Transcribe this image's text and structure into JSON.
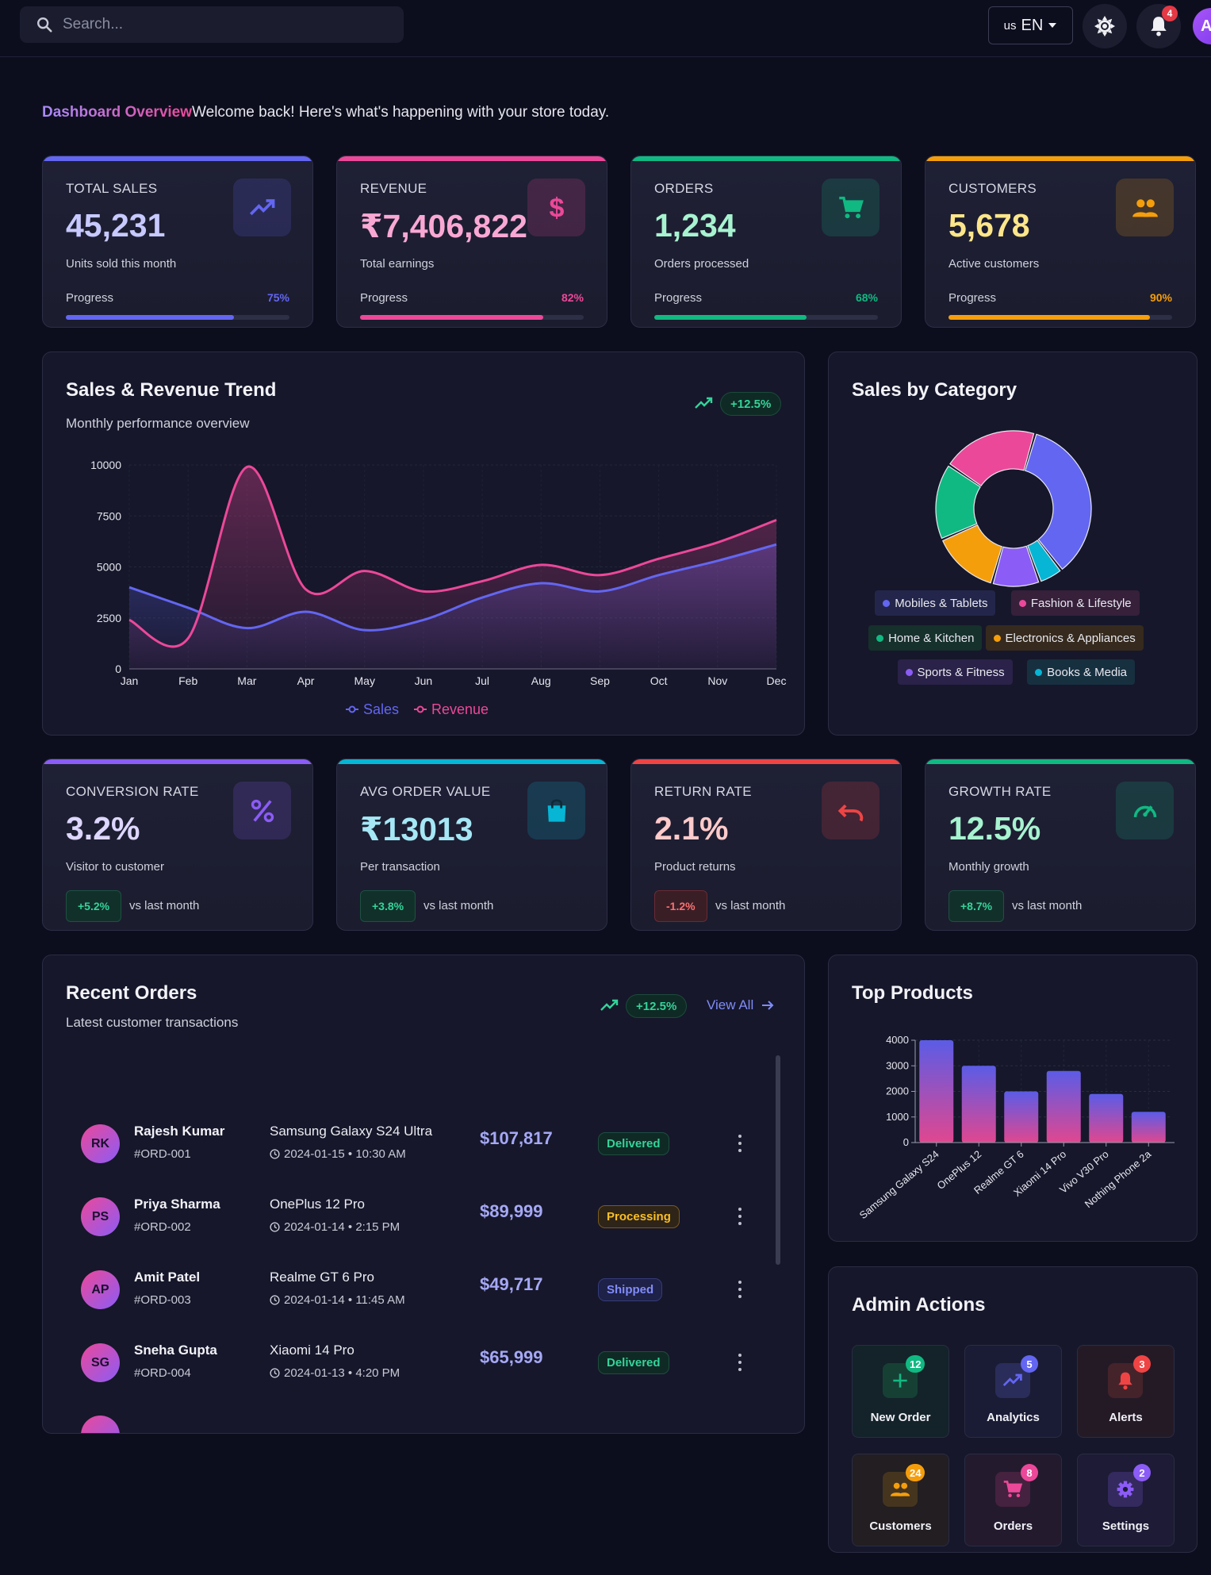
{
  "topbar": {
    "search_placeholder": "Search...",
    "lang_flag": "us",
    "lang_code": "EN",
    "notif_count": "4",
    "avatar_letter": "A"
  },
  "header": {
    "title": "Dashboard Overview",
    "subtitle": "Welcome back! Here's what's happening with your store today."
  },
  "stats": [
    {
      "label": "TOTAL SALES",
      "value": "45,231",
      "desc": "Units sold this month",
      "progress_label": "Progress",
      "progress": "75%",
      "progress_value": 75,
      "color": "#6366f1",
      "value_color": "#c7c9ff",
      "icon": "trend-up-icon"
    },
    {
      "label": "REVENUE",
      "value": "₹7,406,822",
      "desc": "Total earnings",
      "progress_label": "Progress",
      "progress": "82%",
      "progress_value": 82,
      "color": "#ec4899",
      "value_color": "#f9a8d4",
      "icon": "dollar-icon"
    },
    {
      "label": "ORDERS",
      "value": "1,234",
      "desc": "Orders processed",
      "progress_label": "Progress",
      "progress": "68%",
      "progress_value": 68,
      "color": "#10b981",
      "value_color": "#a7f3d0",
      "icon": "cart-icon"
    },
    {
      "label": "CUSTOMERS",
      "value": "5,678",
      "desc": "Active customers",
      "progress_label": "Progress",
      "progress": "90%",
      "progress_value": 90,
      "color": "#f59e0b",
      "value_color": "#fde68a",
      "icon": "people-icon"
    }
  ],
  "trend_chart": {
    "title": "Sales & Revenue Trend",
    "subtitle": "Monthly performance overview",
    "change": "+12.5%",
    "chart_data": {
      "type": "area",
      "x": [
        "Jan",
        "Feb",
        "Mar",
        "Apr",
        "May",
        "Jun",
        "Jul",
        "Aug",
        "Sep",
        "Oct",
        "Nov",
        "Dec"
      ],
      "yticks": [
        "10000",
        "7500",
        "5000",
        "2500",
        "0"
      ],
      "ylim": [
        0,
        10000
      ],
      "series": [
        {
          "name": "Sales",
          "color": "#6366f1",
          "values": [
            4000,
            3000,
            2000,
            2800,
            1900,
            2400,
            3500,
            4200,
            3800,
            4600,
            5300,
            6100
          ]
        },
        {
          "name": "Revenue",
          "color": "#ec4899",
          "values": [
            2400,
            1500,
            9900,
            3900,
            4800,
            3800,
            4300,
            5100,
            4600,
            5400,
            6200,
            7300
          ]
        }
      ],
      "legend": "bottom"
    }
  },
  "category_chart": {
    "title": "Sales by Category",
    "chart_data": {
      "type": "pie",
      "categories": [
        "Mobiles & Tablets",
        "Books & Media",
        "Sports & Fitness",
        "Electronics & Appliances",
        "Home & Kitchen",
        "Fashion & Lifestyle"
      ],
      "values": [
        35,
        5,
        10,
        14,
        16,
        20
      ],
      "colors": [
        "#6366f1",
        "#06b6d4",
        "#8b5cf6",
        "#f59e0b",
        "#10b981",
        "#ec4899"
      ]
    },
    "legend": [
      {
        "name": "Mobiles & Tablets",
        "color": "#6366f1",
        "bg": "#23264a"
      },
      {
        "name": "Fashion & Lifestyle",
        "color": "#ec4899",
        "bg": "#36203a"
      },
      {
        "name": "Home & Kitchen",
        "color": "#10b981",
        "bg": "#16302c"
      },
      {
        "name": "Electronics & Appliances",
        "color": "#f59e0b",
        "bg": "#352a1d"
      },
      {
        "name": "Sports & Fitness",
        "color": "#8b5cf6",
        "bg": "#2a2248"
      },
      {
        "name": "Books & Media",
        "color": "#06b6d4",
        "bg": "#173040"
      }
    ]
  },
  "kpis": [
    {
      "label": "CONVERSION RATE",
      "value": "3.2%",
      "desc": "Visitor to customer",
      "change": "+5.2%",
      "vs": "vs last month",
      "color": "#8b5cf6",
      "value_color": "#ddd6fe",
      "positive": true,
      "icon": "percent-icon"
    },
    {
      "label": "AVG ORDER VALUE",
      "value": "₹13013",
      "desc": "Per transaction",
      "change": "+3.8%",
      "vs": "vs last month",
      "color": "#06b6d4",
      "value_color": "#a5e7f5",
      "positive": true,
      "icon": "bag-icon"
    },
    {
      "label": "RETURN RATE",
      "value": "2.1%",
      "desc": "Product returns",
      "change": "-1.2%",
      "vs": "vs last month",
      "color": "#ef4444",
      "value_color": "#fecaca",
      "positive": false,
      "icon": "undo-icon"
    },
    {
      "label": "GROWTH RATE",
      "value": "12.5%",
      "desc": "Monthly growth",
      "change": "+8.7%",
      "vs": "vs last month",
      "color": "#10b981",
      "value_color": "#a7f3d0",
      "positive": true,
      "icon": "speedometer-icon"
    }
  ],
  "orders_panel": {
    "title": "Recent Orders",
    "subtitle": "Latest customer transactions",
    "change": "+12.5%",
    "view_all": "View All",
    "orders": [
      {
        "initials": "RK",
        "name": "Rajesh Kumar",
        "id": "#ORD-001",
        "product": "Samsung Galaxy S24 Ultra",
        "time": "2024-01-15 • 10:30 AM",
        "amount": "$107,817",
        "status": "Delivered"
      },
      {
        "initials": "PS",
        "name": "Priya Sharma",
        "id": "#ORD-002",
        "product": "OnePlus 12 Pro",
        "time": "2024-01-14 • 2:15 PM",
        "amount": "$89,999",
        "status": "Processing"
      },
      {
        "initials": "AP",
        "name": "Amit Patel",
        "id": "#ORD-003",
        "product": "Realme GT 6 Pro",
        "time": "2024-01-14 • 11:45 AM",
        "amount": "$49,717",
        "status": "Shipped"
      },
      {
        "initials": "SG",
        "name": "Sneha Gupta",
        "id": "#ORD-004",
        "product": "Xiaomi 14 Pro",
        "time": "2024-01-13 • 4:20 PM",
        "amount": "$65,999",
        "status": "Delivered"
      }
    ]
  },
  "top_products": {
    "title": "Top Products",
    "chart_data": {
      "type": "bar",
      "categories": [
        "Samsung Galaxy S24",
        "OnePlus 12",
        "Realme GT 6",
        "Xiaomi 14 Pro",
        "Vivo V30 Pro",
        "Nothing Phone 2a"
      ],
      "values": [
        4000,
        3000,
        2000,
        2800,
        1900,
        1200
      ],
      "ylim": [
        0,
        4000
      ],
      "yticks": [
        "4000",
        "3000",
        "2000",
        "1000",
        "0"
      ]
    }
  },
  "admin": {
    "title": "Admin Actions",
    "tiles": [
      {
        "label": "New Order",
        "badge": "12",
        "icon": "plus-icon",
        "color": "#10b981",
        "bg": "#132329",
        "icbg": "#174035",
        "badge_color": "#10b981"
      },
      {
        "label": "Analytics",
        "badge": "5",
        "icon": "trend-up-icon",
        "color": "#6366f1",
        "bg": "#1a1c35",
        "icbg": "#2a2d5a",
        "badge_color": "#6366f1"
      },
      {
        "label": "Alerts",
        "badge": "3",
        "icon": "bell-icon",
        "color": "#ef4444",
        "bg": "#241a26",
        "icbg": "#45232b",
        "badge_color": "#ef4444"
      },
      {
        "label": "Customers",
        "badge": "24",
        "icon": "people-icon",
        "color": "#f59e0b",
        "bg": "#221e22",
        "icbg": "#45351f",
        "badge_color": "#f59e0b"
      },
      {
        "label": "Orders",
        "badge": "8",
        "icon": "cart-icon",
        "color": "#ec4899",
        "bg": "#231a2e",
        "icbg": "#45223f",
        "badge_color": "#ec4899"
      },
      {
        "label": "Settings",
        "badge": "2",
        "icon": "gear-icon",
        "color": "#8b5cf6",
        "bg": "#1d1b35",
        "icbg": "#342a5e",
        "badge_color": "#8b5cf6"
      }
    ]
  },
  "status_styles": {
    "Delivered": {
      "fg": "#34d399",
      "bg": "#0f2a24",
      "border": "#1e4d40"
    },
    "Processing": {
      "fg": "#fbbf24",
      "bg": "#2e2418",
      "border": "#7a5a1e"
    },
    "Shipped": {
      "fg": "#818cf8",
      "bg": "#1e2148",
      "border": "#353b7a"
    }
  }
}
